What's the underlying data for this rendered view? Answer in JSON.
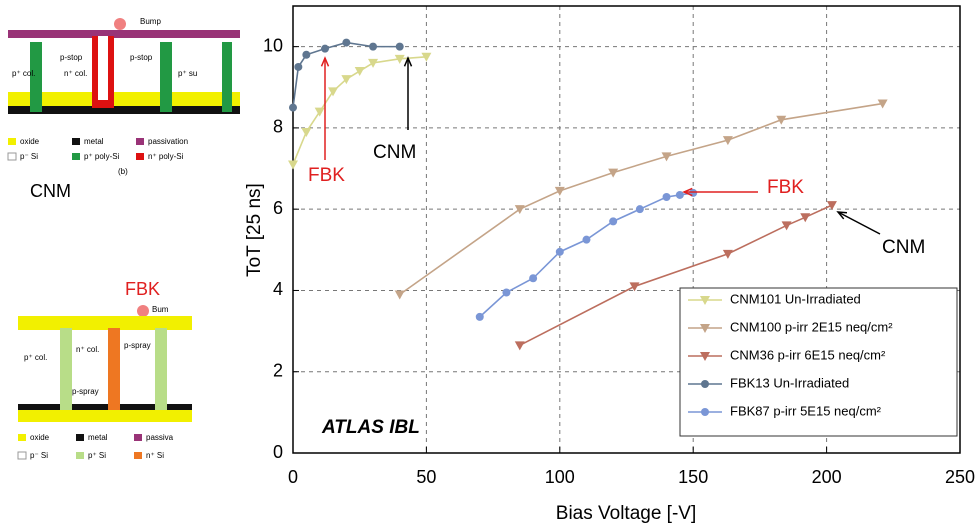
{
  "chart_data": {
    "type": "line",
    "xlabel": "Bias Voltage [-V]",
    "ylabel": "ToT [25 ns]",
    "xlim": [
      0,
      250
    ],
    "xticks": [
      0,
      50,
      100,
      150,
      200,
      250
    ],
    "ylim": [
      0,
      11
    ],
    "yticks": [
      0,
      2,
      4,
      6,
      8,
      10
    ],
    "grid": true,
    "legend": "lower right",
    "series": [
      {
        "name": "CNM101 Un-Irradiated",
        "color": "#d8d88c",
        "marker": "triangle",
        "x": [
          0,
          5,
          10,
          15,
          20,
          25,
          30,
          40,
          50
        ],
        "values": [
          7.1,
          7.9,
          8.4,
          8.9,
          9.2,
          9.4,
          9.6,
          9.7,
          9.75
        ]
      },
      {
        "name": "CNM100 p-irr 2E15 neq/cm²",
        "color": "#c4a488",
        "marker": "triangle",
        "x": [
          40,
          85,
          100,
          120,
          140,
          163,
          183,
          221
        ],
        "values": [
          3.9,
          6.0,
          6.45,
          6.9,
          7.3,
          7.7,
          8.2,
          8.6
        ]
      },
      {
        "name": "CNM36 p-irr 6E15 neq/cm²",
        "color": "#bc6e5e",
        "marker": "triangle",
        "x": [
          85,
          128,
          163,
          185,
          192,
          202
        ],
        "values": [
          2.65,
          4.1,
          4.9,
          5.6,
          5.8,
          6.1
        ]
      },
      {
        "name": "FBK13 Un-Irradiated",
        "color": "#5f7690",
        "marker": "circle",
        "x": [
          0,
          2,
          5,
          12,
          20,
          30,
          40
        ],
        "values": [
          8.5,
          9.5,
          9.8,
          9.95,
          10.1,
          10.0,
          10.0
        ]
      },
      {
        "name": "FBK87 p-irr 5E15 neq/cm²",
        "color": "#7a96d6",
        "marker": "circle",
        "x": [
          70,
          80,
          90,
          100,
          110,
          120,
          130,
          140,
          145,
          150
        ],
        "values": [
          3.35,
          3.95,
          4.3,
          4.95,
          5.25,
          5.7,
          6.0,
          6.3,
          6.35,
          6.4
        ]
      }
    ],
    "annotations": [
      "ATLAS IBL",
      "FBK",
      "CNM",
      "FBK",
      "CNM"
    ]
  },
  "diagrams": {
    "cnm": {
      "title": "CNM",
      "labels": [
        "Bump",
        "p-stop",
        "p-stop",
        "n⁺ col.",
        "p⁺ col.",
        "p⁺ su",
        "(b)"
      ],
      "legend": [
        "oxide",
        "metal",
        "passivation",
        "p⁻ Si",
        "p⁺ poly-Si",
        "n⁺ poly-Si"
      ]
    },
    "fbk": {
      "title": "FBK",
      "labels": [
        "Bum",
        "n⁺ col.",
        "p-spray",
        "p⁺ col.",
        "p-spray"
      ],
      "legend": [
        "oxide",
        "metal",
        "passiva",
        "p⁻ Si",
        "p⁺ Si",
        "n⁺ Si"
      ]
    }
  }
}
